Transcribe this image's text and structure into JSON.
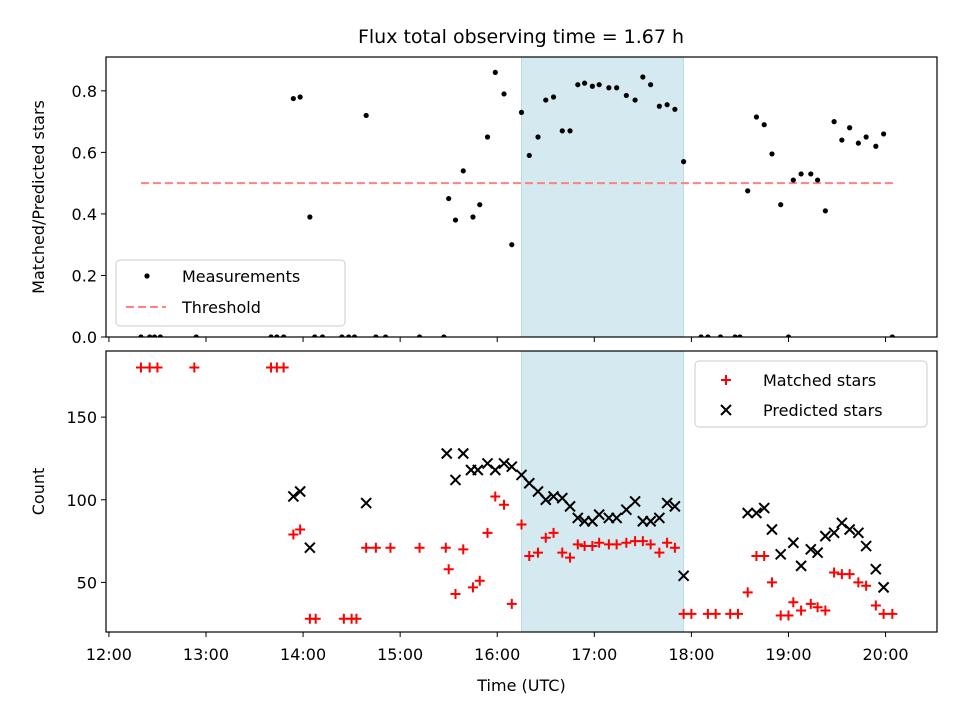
{
  "chart_data": [
    {
      "type": "scatter",
      "title": "Flux total observing time = 1.67 h",
      "xlabel": "",
      "ylabel": "Matched/Predicted stars",
      "xlim": [
        11.97,
        20.53
      ],
      "ylim": [
        0,
        0.91
      ],
      "yticks": [
        0.0,
        0.2,
        0.4,
        0.6,
        0.8
      ],
      "ytick_labels": [
        "0.0",
        "0.2",
        "0.4",
        "0.6",
        "0.8"
      ],
      "xticks": [
        12,
        13,
        14,
        15,
        16,
        17,
        18,
        19,
        20
      ],
      "shaded_span": {
        "x_start": 16.25,
        "x_end": 17.92,
        "color": "#d4eaf0"
      },
      "legend_position": "lower-left",
      "threshold": {
        "name": "Threshold",
        "y": 0.5,
        "x_start": 12.33,
        "x_end": 20.08,
        "color": "#ff8080"
      },
      "series": [
        {
          "name": "Measurements",
          "color": "#000000",
          "points": [
            [
              12.33,
              0
            ],
            [
              12.42,
              0
            ],
            [
              12.47,
              0
            ],
            [
              12.53,
              0
            ],
            [
              12.9,
              0
            ],
            [
              13.67,
              0
            ],
            [
              13.73,
              0
            ],
            [
              13.8,
              0
            ],
            [
              13.9,
              0.775
            ],
            [
              13.97,
              0.78
            ],
            [
              14.07,
              0.39
            ],
            [
              14.12,
              0
            ],
            [
              14.2,
              0
            ],
            [
              14.4,
              0
            ],
            [
              14.47,
              0
            ],
            [
              14.53,
              0
            ],
            [
              14.65,
              0.72
            ],
            [
              14.75,
              0
            ],
            [
              14.85,
              0
            ],
            [
              15.2,
              0
            ],
            [
              15.45,
              0
            ],
            [
              15.5,
              0.45
            ],
            [
              15.57,
              0.38
            ],
            [
              15.65,
              0.54
            ],
            [
              15.75,
              0.39
            ],
            [
              15.82,
              0.43
            ],
            [
              15.9,
              0.65
            ],
            [
              15.98,
              0.86
            ],
            [
              16.07,
              0.79
            ],
            [
              16.15,
              0.3
            ],
            [
              16.25,
              0.73
            ],
            [
              16.33,
              0.59
            ],
            [
              16.42,
              0.65
            ],
            [
              16.5,
              0.77
            ],
            [
              16.58,
              0.78
            ],
            [
              16.67,
              0.67
            ],
            [
              16.75,
              0.67
            ],
            [
              16.83,
              0.82
            ],
            [
              16.9,
              0.825
            ],
            [
              16.98,
              0.815
            ],
            [
              17.05,
              0.82
            ],
            [
              17.15,
              0.81
            ],
            [
              17.23,
              0.81
            ],
            [
              17.33,
              0.785
            ],
            [
              17.42,
              0.77
            ],
            [
              17.5,
              0.845
            ],
            [
              17.58,
              0.82
            ],
            [
              17.67,
              0.75
            ],
            [
              17.75,
              0.755
            ],
            [
              17.83,
              0.74
            ],
            [
              17.92,
              0.57
            ],
            [
              18.1,
              0
            ],
            [
              18.17,
              0
            ],
            [
              18.3,
              0
            ],
            [
              18.45,
              0
            ],
            [
              18.5,
              0
            ],
            [
              18.58,
              0.475
            ],
            [
              18.67,
              0.715
            ],
            [
              18.75,
              0.69
            ],
            [
              18.83,
              0.595
            ],
            [
              18.92,
              0.43
            ],
            [
              19.0,
              0
            ],
            [
              19.05,
              0.51
            ],
            [
              19.13,
              0.53
            ],
            [
              19.23,
              0.53
            ],
            [
              19.3,
              0.51
            ],
            [
              19.38,
              0.41
            ],
            [
              19.47,
              0.7
            ],
            [
              19.55,
              0.64
            ],
            [
              19.63,
              0.68
            ],
            [
              19.72,
              0.63
            ],
            [
              19.8,
              0.65
            ],
            [
              19.9,
              0.62
            ],
            [
              19.98,
              0.66
            ],
            [
              20.07,
              0
            ]
          ]
        }
      ]
    },
    {
      "type": "scatter",
      "title": "",
      "xlabel": "Time (UTC)",
      "ylabel": "Count",
      "xlim": [
        11.97,
        20.53
      ],
      "ylim": [
        20,
        190
      ],
      "yticks": [
        50,
        100,
        150
      ],
      "ytick_labels": [
        "50",
        "100",
        "150"
      ],
      "xticks": [
        12,
        13,
        14,
        15,
        16,
        17,
        18,
        19,
        20
      ],
      "xtick_labels": [
        "12:00",
        "13:00",
        "14:00",
        "15:00",
        "16:00",
        "17:00",
        "18:00",
        "19:00",
        "20:00"
      ],
      "shaded_span": {
        "x_start": 16.25,
        "x_end": 17.92,
        "color": "#d4eaf0"
      },
      "legend_position": "upper-right",
      "series": [
        {
          "name": "Matched stars",
          "marker": "plus",
          "color": "#ff0000",
          "points": [
            [
              12.33,
              180
            ],
            [
              12.42,
              180
            ],
            [
              12.5,
              180
            ],
            [
              12.88,
              180
            ],
            [
              13.67,
              180
            ],
            [
              13.73,
              180
            ],
            [
              13.8,
              180
            ],
            [
              13.9,
              79
            ],
            [
              13.97,
              82
            ],
            [
              14.07,
              28
            ],
            [
              14.13,
              28
            ],
            [
              14.42,
              28
            ],
            [
              14.5,
              28
            ],
            [
              14.55,
              28
            ],
            [
              14.65,
              71
            ],
            [
              14.75,
              71
            ],
            [
              14.9,
              71
            ],
            [
              15.2,
              71
            ],
            [
              15.47,
              71
            ],
            [
              15.5,
              58
            ],
            [
              15.57,
              43
            ],
            [
              15.65,
              70
            ],
            [
              15.75,
              47
            ],
            [
              15.82,
              51
            ],
            [
              15.9,
              80
            ],
            [
              15.98,
              102
            ],
            [
              16.07,
              97
            ],
            [
              16.15,
              37
            ],
            [
              16.25,
              85
            ],
            [
              16.33,
              66
            ],
            [
              16.42,
              68
            ],
            [
              16.5,
              77
            ],
            [
              16.58,
              80
            ],
            [
              16.67,
              68
            ],
            [
              16.75,
              65
            ],
            [
              16.83,
              73
            ],
            [
              16.9,
              72
            ],
            [
              16.98,
              72
            ],
            [
              17.05,
              74
            ],
            [
              17.15,
              73
            ],
            [
              17.23,
              73
            ],
            [
              17.33,
              74
            ],
            [
              17.42,
              75
            ],
            [
              17.5,
              75
            ],
            [
              17.58,
              73
            ],
            [
              17.67,
              68
            ],
            [
              17.75,
              74
            ],
            [
              17.83,
              71
            ],
            [
              17.92,
              31
            ],
            [
              18.0,
              31
            ],
            [
              18.17,
              31
            ],
            [
              18.25,
              31
            ],
            [
              18.4,
              31
            ],
            [
              18.48,
              31
            ],
            [
              18.58,
              44
            ],
            [
              18.67,
              66
            ],
            [
              18.75,
              66
            ],
            [
              18.83,
              50
            ],
            [
              18.92,
              30
            ],
            [
              19.0,
              30
            ],
            [
              19.05,
              38
            ],
            [
              19.13,
              33
            ],
            [
              19.23,
              37
            ],
            [
              19.3,
              35
            ],
            [
              19.38,
              33
            ],
            [
              19.47,
              56
            ],
            [
              19.55,
              55
            ],
            [
              19.63,
              55
            ],
            [
              19.72,
              50
            ],
            [
              19.8,
              48
            ],
            [
              19.9,
              36
            ],
            [
              19.98,
              31
            ],
            [
              20.07,
              31
            ]
          ]
        },
        {
          "name": "Predicted stars",
          "marker": "x",
          "color": "#000000",
          "points": [
            [
              13.9,
              102
            ],
            [
              13.97,
              105
            ],
            [
              14.07,
              71
            ],
            [
              14.65,
              98
            ],
            [
              15.48,
              128
            ],
            [
              15.57,
              112
            ],
            [
              15.65,
              128
            ],
            [
              15.73,
              118
            ],
            [
              15.8,
              118
            ],
            [
              15.9,
              122
            ],
            [
              15.98,
              118
            ],
            [
              16.07,
              122
            ],
            [
              16.15,
              120
            ],
            [
              16.25,
              115
            ],
            [
              16.33,
              110
            ],
            [
              16.42,
              105
            ],
            [
              16.5,
              100
            ],
            [
              16.58,
              102
            ],
            [
              16.67,
              101
            ],
            [
              16.75,
              96
            ],
            [
              16.83,
              89
            ],
            [
              16.9,
              87
            ],
            [
              16.98,
              87
            ],
            [
              17.05,
              91
            ],
            [
              17.15,
              89
            ],
            [
              17.23,
              89
            ],
            [
              17.33,
              94
            ],
            [
              17.42,
              99
            ],
            [
              17.5,
              87
            ],
            [
              17.58,
              87
            ],
            [
              17.67,
              89
            ],
            [
              17.75,
              98
            ],
            [
              17.83,
              96
            ],
            [
              17.92,
              54
            ],
            [
              18.58,
              92
            ],
            [
              18.67,
              92
            ],
            [
              18.75,
              95
            ],
            [
              18.83,
              82
            ],
            [
              18.92,
              67
            ],
            [
              19.05,
              74
            ],
            [
              19.13,
              60
            ],
            [
              19.23,
              70
            ],
            [
              19.3,
              68
            ],
            [
              19.38,
              78
            ],
            [
              19.47,
              80
            ],
            [
              19.55,
              86
            ],
            [
              19.63,
              82
            ],
            [
              19.72,
              80
            ],
            [
              19.8,
              72
            ],
            [
              19.9,
              58
            ],
            [
              19.98,
              47
            ]
          ]
        }
      ]
    }
  ]
}
